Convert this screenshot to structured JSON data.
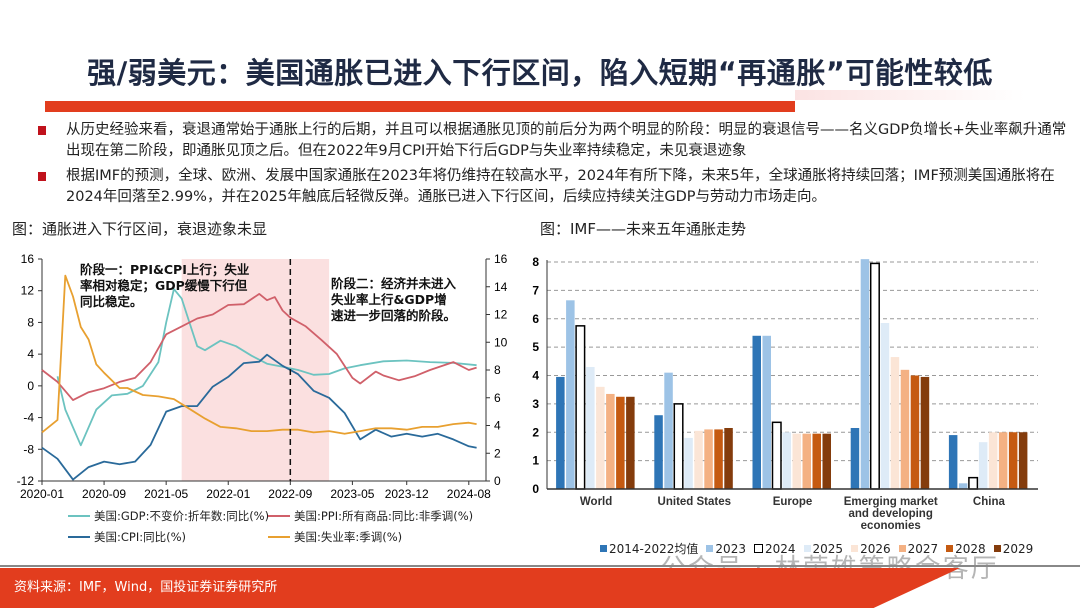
{
  "title": "强/弱美元：美国通胀已进入下行区间，陷入短期“再通胀”可能性较低",
  "bullets": [
    "从历史经验来看，衰退通常始于通胀上行的后期，并且可以根据通胀见顶的前后分为两个明显的阶段：明显的衰退信号——名义GDP负增长+失业率飙升通常出现在第二阶段，即通胀见顶之后。但在2022年9月CPI开始下行后GDP与失业率持续稳定，未见衰退迹象",
    "根据IMF的预测，全球、欧洲、发展中国家通胀在2023年将仍维持在较高水平，2024年有所下降，未来5年，全球通胀将持续回落；IMF预测美国通胀将在2024年回落至2.99%，并在2025年触底后轻微反弹。通胀已进入下行区间，后续应持续关注GDP与劳动力市场走向。"
  ],
  "captions": {
    "left": "图：通胀进入下行区间，衰退迹象未显",
    "right": "图：IMF——未来五年通胀走势"
  },
  "annotations": {
    "stage1": "阶段一：PPI&CPI上行；失业率相对稳定；GDP缓慢下行但同比稳定。",
    "stage2": "阶段二：经济并未进入失业率上行&GDP增速进一步回落的阶段。"
  },
  "source": "资料来源：IMF，Wind，国投证券证券研究所",
  "watermark": "公众号 · 林荣雄策略会客厅",
  "colors": {
    "accent_red": "#e23d1e",
    "title_navy": "#1f2a44",
    "bullet_red": "#c0121c",
    "shade": "#fbe0e0"
  },
  "chart_data": [
    {
      "type": "line",
      "x_ticks": [
        "2020-01",
        "2020-09",
        "2021-05",
        "2022-01",
        "2022-09",
        "2023-05",
        "2023-12",
        "2024-08"
      ],
      "y_left": {
        "range": [
          -12,
          16
        ],
        "ticks": [
          -12,
          -8,
          -4,
          0,
          4,
          8,
          12,
          16
        ]
      },
      "y_right": {
        "range": [
          0,
          16
        ],
        "ticks": [
          0,
          2,
          4,
          6,
          8,
          10,
          12,
          14,
          16
        ]
      },
      "shaded_period": [
        "2021-07",
        "2023-02"
      ],
      "dashed_line": "2022-09",
      "grid": false,
      "legend_position": "bottom",
      "series": [
        {
          "name": "美国:GDP:不变价:折年数:同比(%)",
          "axis": "left",
          "color": "#6cc3c0",
          "points": [
            [
              "2020-03",
              1.2
            ],
            [
              "2020-04",
              -3
            ],
            [
              "2020-06",
              -7.5
            ],
            [
              "2020-08",
              -3
            ],
            [
              "2020-10",
              -1.2
            ],
            [
              "2020-12",
              -1
            ],
            [
              "2021-02",
              0
            ],
            [
              "2021-04",
              3
            ],
            [
              "2021-05",
              8
            ],
            [
              "2021-06",
              12.2
            ],
            [
              "2021-07",
              11
            ],
            [
              "2021-08",
              8
            ],
            [
              "2021-09",
              5
            ],
            [
              "2021-10",
              4.5
            ],
            [
              "2021-12",
              5.7
            ],
            [
              "2022-02",
              5
            ],
            [
              "2022-04",
              3.8
            ],
            [
              "2022-06",
              2.8
            ],
            [
              "2022-08",
              2.4
            ],
            [
              "2022-10",
              2
            ],
            [
              "2022-12",
              1.4
            ],
            [
              "2023-02",
              1.5
            ],
            [
              "2023-04",
              2.2
            ],
            [
              "2023-06",
              2.6
            ],
            [
              "2023-09",
              3.1
            ],
            [
              "2023-12",
              3.2
            ],
            [
              "2024-03",
              3
            ],
            [
              "2024-06",
              2.9
            ],
            [
              "2024-09",
              2.6
            ]
          ]
        },
        {
          "name": "美国:PPI:所有商品:同比:非季调(%)",
          "axis": "left",
          "color": "#d0606a",
          "points": [
            [
              "2020-01",
              2
            ],
            [
              "2020-03",
              0.5
            ],
            [
              "2020-05",
              -1.8
            ],
            [
              "2020-07",
              -0.8
            ],
            [
              "2020-09",
              -0.3
            ],
            [
              "2020-11",
              0.5
            ],
            [
              "2021-01",
              1
            ],
            [
              "2021-03",
              3
            ],
            [
              "2021-05",
              6.5
            ],
            [
              "2021-07",
              7.5
            ],
            [
              "2021-09",
              8.5
            ],
            [
              "2021-11",
              9
            ],
            [
              "2022-01",
              10.2
            ],
            [
              "2022-03",
              10.3
            ],
            [
              "2022-05",
              11.6
            ],
            [
              "2022-06",
              10.8
            ],
            [
              "2022-07",
              11.2
            ],
            [
              "2022-08",
              9.5
            ],
            [
              "2022-09",
              8.6
            ],
            [
              "2022-11",
              7.5
            ],
            [
              "2023-01",
              5.8
            ],
            [
              "2023-03",
              4
            ],
            [
              "2023-05",
              1
            ],
            [
              "2023-06",
              0.3
            ],
            [
              "2023-08",
              1.8
            ],
            [
              "2023-09",
              1.3
            ],
            [
              "2023-11",
              0.7
            ],
            [
              "2024-01",
              1.2
            ],
            [
              "2024-03",
              2
            ],
            [
              "2024-06",
              3
            ],
            [
              "2024-08",
              2
            ],
            [
              "2024-09",
              2.3
            ]
          ]
        },
        {
          "name": "美国:CPI:同比(%)",
          "axis": "right",
          "color": "#2a6a9a",
          "points": [
            [
              "2020-01",
              2.4
            ],
            [
              "2020-03",
              1.6
            ],
            [
              "2020-05",
              0.1
            ],
            [
              "2020-07",
              1
            ],
            [
              "2020-09",
              1.4
            ],
            [
              "2020-11",
              1.2
            ],
            [
              "2021-01",
              1.4
            ],
            [
              "2021-03",
              2.6
            ],
            [
              "2021-05",
              5
            ],
            [
              "2021-07",
              5.4
            ],
            [
              "2021-09",
              5.4
            ],
            [
              "2021-11",
              6.8
            ],
            [
              "2022-01",
              7.5
            ],
            [
              "2022-03",
              8.5
            ],
            [
              "2022-05",
              8.6
            ],
            [
              "2022-06",
              9.1
            ],
            [
              "2022-08",
              8.3
            ],
            [
              "2022-10",
              7.7
            ],
            [
              "2022-12",
              6.5
            ],
            [
              "2023-02",
              6
            ],
            [
              "2023-04",
              4.9
            ],
            [
              "2023-06",
              3
            ],
            [
              "2023-08",
              3.7
            ],
            [
              "2023-10",
              3.2
            ],
            [
              "2023-12",
              3.4
            ],
            [
              "2024-02",
              3.2
            ],
            [
              "2024-04",
              3.4
            ],
            [
              "2024-06",
              3
            ],
            [
              "2024-08",
              2.5
            ],
            [
              "2024-09",
              2.4
            ]
          ]
        },
        {
          "name": "美国:失业率:季调(%)",
          "axis": "right",
          "color": "#e8a030",
          "points": [
            [
              "2020-01",
              3.5
            ],
            [
              "2020-03",
              4.4
            ],
            [
              "2020-04",
              14.8
            ],
            [
              "2020-05",
              13.3
            ],
            [
              "2020-06",
              11.1
            ],
            [
              "2020-07",
              10.2
            ],
            [
              "2020-08",
              8.4
            ],
            [
              "2020-09",
              7.8
            ],
            [
              "2020-11",
              6.7
            ],
            [
              "2020-12",
              6.7
            ],
            [
              "2021-02",
              6.2
            ],
            [
              "2021-04",
              6.1
            ],
            [
              "2021-06",
              5.9
            ],
            [
              "2021-08",
              5.2
            ],
            [
              "2021-10",
              4.5
            ],
            [
              "2021-12",
              3.9
            ],
            [
              "2022-02",
              3.8
            ],
            [
              "2022-04",
              3.6
            ],
            [
              "2022-06",
              3.6
            ],
            [
              "2022-08",
              3.7
            ],
            [
              "2022-10",
              3.7
            ],
            [
              "2022-12",
              3.5
            ],
            [
              "2023-02",
              3.6
            ],
            [
              "2023-04",
              3.4
            ],
            [
              "2023-06",
              3.6
            ],
            [
              "2023-08",
              3.8
            ],
            [
              "2023-10",
              3.8
            ],
            [
              "2023-12",
              3.7
            ],
            [
              "2024-02",
              3.9
            ],
            [
              "2024-04",
              3.9
            ],
            [
              "2024-06",
              4.1
            ],
            [
              "2024-08",
              4.2
            ],
            [
              "2024-09",
              4.1
            ]
          ]
        }
      ]
    },
    {
      "type": "bar",
      "categories": [
        "World",
        "United States",
        "Europe",
        "Emerging market and developing economies",
        "China"
      ],
      "ylim": [
        0,
        8
      ],
      "y_ticks": [
        0,
        1,
        2,
        3,
        4,
        5,
        6,
        7,
        8
      ],
      "grid": "dashed-horizontal",
      "legend_position": "bottom",
      "series": [
        {
          "name": "2014-2022均值",
          "color": "#2e75b6",
          "values": [
            3.95,
            2.6,
            5.4,
            2.15,
            1.9
          ]
        },
        {
          "name": "2023",
          "color": "#9dc3e6",
          "values": [
            6.65,
            4.1,
            5.4,
            8.1,
            0.2
          ]
        },
        {
          "name": "2024",
          "color": "#ffffff",
          "outline": "#000000",
          "values": [
            5.75,
            3.0,
            2.35,
            7.95,
            0.4
          ]
        },
        {
          "name": "2025",
          "color": "#deebf7",
          "values": [
            4.3,
            1.8,
            2.0,
            5.85,
            1.65
          ]
        },
        {
          "name": "2026",
          "color": "#fbe5d6",
          "values": [
            3.6,
            2.05,
            1.95,
            4.65,
            2.0
          ]
        },
        {
          "name": "2027",
          "color": "#f4b183",
          "values": [
            3.35,
            2.1,
            1.95,
            4.2,
            2.0
          ]
        },
        {
          "name": "2028",
          "color": "#c55a11",
          "values": [
            3.25,
            2.1,
            1.95,
            4.0,
            2.0
          ]
        },
        {
          "name": "2029",
          "color": "#843c0c",
          "values": [
            3.25,
            2.15,
            1.95,
            3.95,
            2.0
          ]
        }
      ]
    }
  ]
}
